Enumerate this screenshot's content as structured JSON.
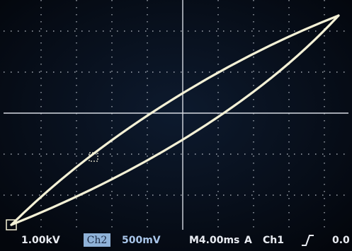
{
  "status_bar": {
    "ch1_scale": "1.00kV",
    "ch2_label": "Ch2",
    "ch2_scale": "500mV",
    "timebase": "M4.00ms",
    "trigger_mode": "A",
    "trigger_source": "Ch1",
    "trigger_level": "0.0"
  }
}
